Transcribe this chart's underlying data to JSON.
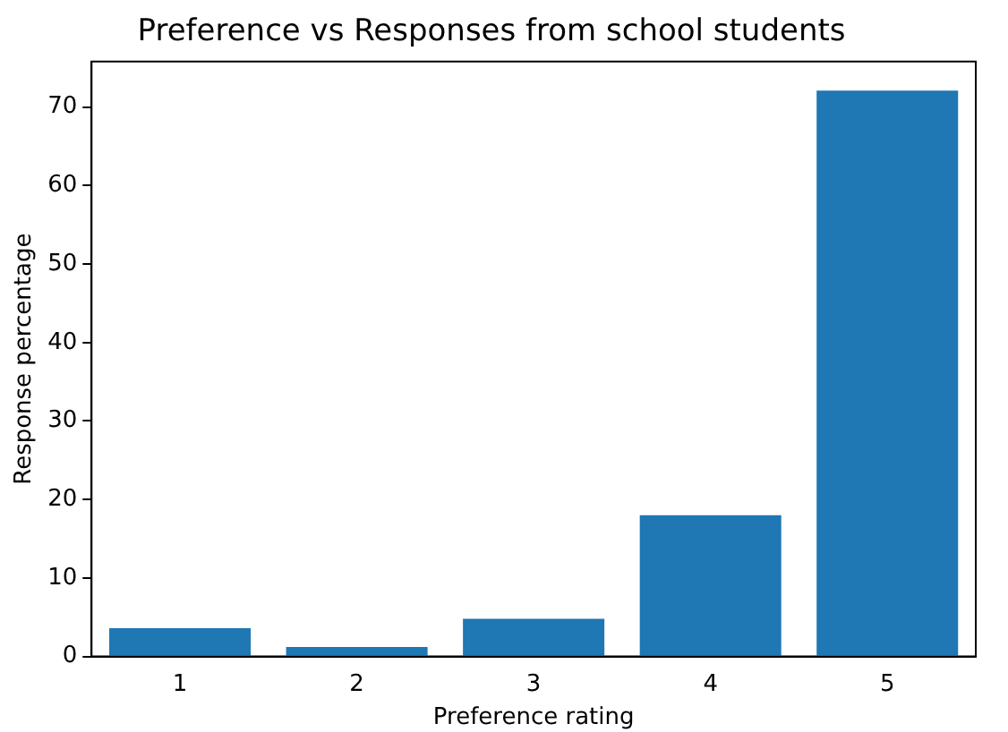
{
  "chart_data": {
    "type": "bar",
    "title": "Preference vs Responses from school students",
    "xlabel": "Preference rating",
    "ylabel": "Response percentage",
    "categories": [
      "1",
      "2",
      "3",
      "4",
      "5"
    ],
    "values": [
      3.6,
      1.2,
      4.8,
      18.0,
      72.1
    ],
    "color": "#1f77b4",
    "ylim": [
      0,
      75.8
    ],
    "yticks": [
      0,
      10,
      20,
      30,
      40,
      50,
      60,
      70
    ],
    "grid": false,
    "legend": false
  }
}
